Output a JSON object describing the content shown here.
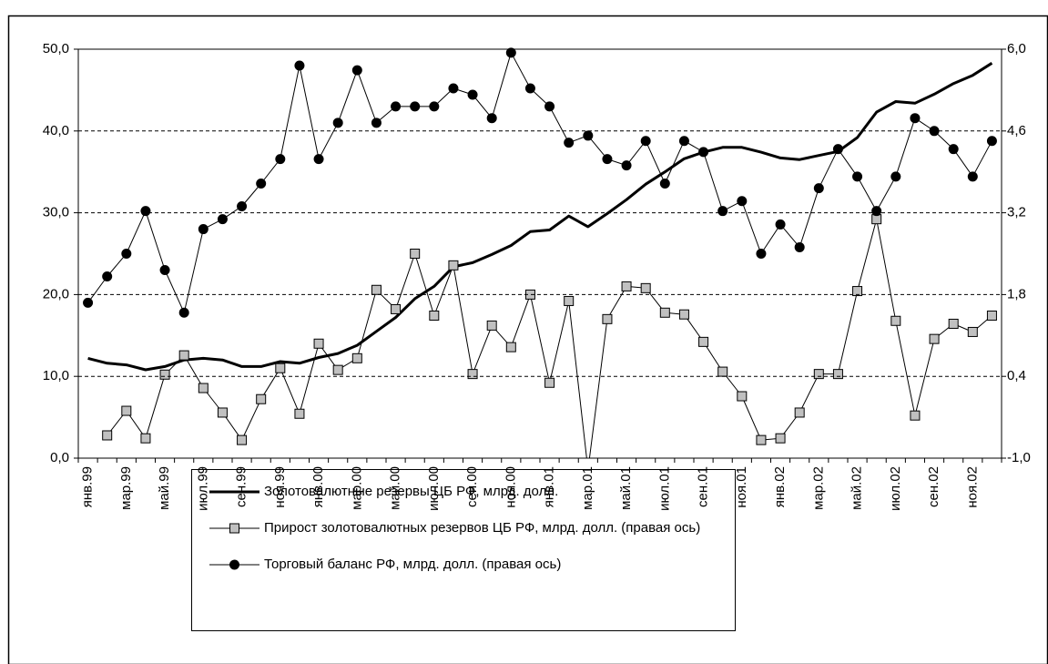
{
  "chart_data": {
    "type": "line",
    "categories": [
      "янв.99",
      null,
      "мар.99",
      null,
      "май.99",
      null,
      "июл.99",
      null,
      "сен.99",
      null,
      "ноя.99",
      null,
      "янв.00",
      null,
      "мар.00",
      null,
      "май.00",
      null,
      "июл.00",
      null,
      "сен.00",
      null,
      "ноя.00",
      null,
      "янв.01",
      null,
      "мар.01",
      null,
      "май.01",
      null,
      "июл.01",
      null,
      "сен.01",
      null,
      "ноя.01",
      null,
      "янв.02",
      null,
      "мар.02",
      null,
      "май.02",
      null,
      "июл.02",
      null,
      "сен.02",
      null,
      "ноя.02",
      null
    ],
    "ylim": [
      0,
      50
    ],
    "yticks": [
      {
        "value": 0,
        "label": "0,0"
      },
      {
        "value": 10,
        "label": "10,0"
      },
      {
        "value": 20,
        "label": "20,0"
      },
      {
        "value": 30,
        "label": "30,0"
      },
      {
        "value": 40,
        "label": "40,0"
      },
      {
        "value": 50,
        "label": "50,0"
      }
    ],
    "y2lim": [
      -1.0,
      6.0
    ],
    "y2ticks": [
      {
        "value": -1.0,
        "label": "-1,0"
      },
      {
        "value": 0.4,
        "label": "0,4"
      },
      {
        "value": 1.8,
        "label": "1,8"
      },
      {
        "value": 3.2,
        "label": "3,2"
      },
      {
        "value": 4.6,
        "label": "4,6"
      },
      {
        "value": 6.0,
        "label": "6,0"
      }
    ],
    "grid": true,
    "series": [
      {
        "name": "Золотовалютные резервы ЦБ РФ, млрд. долл.",
        "color": "#000000",
        "marker": "none",
        "width": 3,
        "values": [
          12.2,
          11.6,
          11.4,
          10.8,
          11.2,
          12.0,
          12.2,
          12.0,
          11.2,
          11.2,
          11.8,
          11.6,
          12.3,
          12.8,
          13.8,
          15.5,
          17.2,
          19.5,
          21.0,
          23.4,
          23.9,
          24.9,
          26.0,
          27.7,
          27.9,
          29.6,
          28.3,
          29.9,
          31.6,
          33.5,
          35.0,
          36.6,
          37.4,
          38.0,
          38.0,
          37.4,
          36.7,
          36.5,
          37.0,
          37.5,
          39.2,
          42.3,
          43.6,
          43.4,
          44.5,
          45.8,
          46.8,
          48.3
        ]
      },
      {
        "name": "Прирост золотовалютных резервов ЦБ РФ, млрд. долл. (правая ось)",
        "color": "#000000",
        "marker": "square",
        "marker_color": "#c0c0c0",
        "width": 1,
        "axis": "y2",
        "values": [
          null,
          -0.61,
          -0.19,
          -0.66,
          0.43,
          0.76,
          0.2,
          -0.22,
          -0.69,
          0.01,
          0.54,
          -0.24,
          0.96,
          0.51,
          0.71,
          1.88,
          1.55,
          2.5,
          1.44,
          2.3,
          0.44,
          1.27,
          0.9,
          1.8,
          0.29,
          1.69,
          -1.2,
          1.38,
          1.94,
          1.91,
          1.49,
          1.46,
          0.99,
          0.48,
          0.06,
          -0.69,
          -0.66,
          -0.22,
          0.44,
          0.44,
          1.86,
          3.09,
          1.35,
          -0.27,
          1.04,
          1.3,
          1.16,
          1.44
        ]
      },
      {
        "name": "Торговый баланс РФ, млрд. долл. (правая ось)",
        "color": "#000000",
        "marker": "circle",
        "marker_color": "#000000",
        "width": 1,
        "axis": "y2",
        "values": [
          1.66,
          2.11,
          2.5,
          3.23,
          2.22,
          1.49,
          2.92,
          3.09,
          3.31,
          3.7,
          4.12,
          5.72,
          4.12,
          4.74,
          5.64,
          4.74,
          5.02,
          5.02,
          5.02,
          5.33,
          5.22,
          4.82,
          5.94,
          5.33,
          5.02,
          4.4,
          4.52,
          4.12,
          4.01,
          4.43,
          3.7,
          4.43,
          4.24,
          3.23,
          3.4,
          2.5,
          3.0,
          2.61,
          3.62,
          4.29,
          3.82,
          3.23,
          3.82,
          4.82,
          4.6,
          4.29,
          3.82,
          4.43
        ]
      }
    ]
  }
}
